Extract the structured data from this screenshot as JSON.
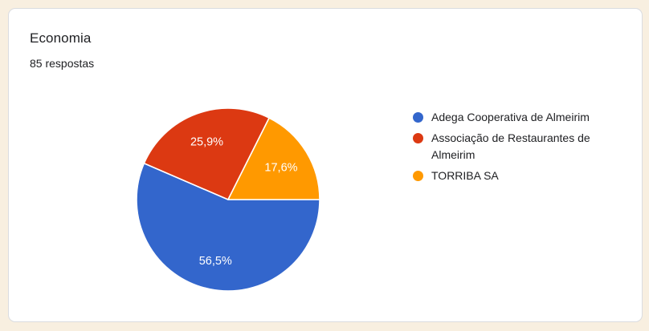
{
  "page": {
    "background_color": "#f8efe0",
    "card_background_color": "#ffffff",
    "card_border_color": "#dadce0"
  },
  "header": {
    "title": "Economia",
    "subtitle": "85 respostas"
  },
  "chart_data": {
    "type": "pie",
    "title": "Economia",
    "subtitle": "85 respostas",
    "start_angle_deg": 0,
    "direction": "clockwise",
    "legend_position": "right",
    "label_color": "#ffffff",
    "slices": [
      {
        "label": "Adega Cooperativa de Almeirim",
        "percent": 56.5,
        "display": "56,5%",
        "color": "#3366cc"
      },
      {
        "label": "Associação de Restaurantes de Almeirim",
        "percent": 25.9,
        "display": "25,9%",
        "color": "#dc3912"
      },
      {
        "label": "TORRIBA SA",
        "percent": 17.6,
        "display": "17,6%",
        "color": "#ff9900"
      }
    ]
  }
}
